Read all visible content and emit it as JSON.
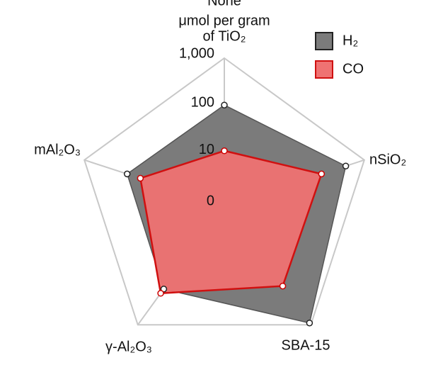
{
  "chart_data": {
    "type": "radar",
    "annotation": [
      "μmol per gram",
      "of TiO₂"
    ],
    "categories": [
      "None",
      "nSiO₂",
      "SBA-15",
      "γ-Al₂O₃",
      "mAl₂O₃"
    ],
    "scale": "log1p",
    "rlim": [
      0,
      1000
    ],
    "rticks": [
      0,
      10,
      100,
      {
        "value": 1000,
        "label": "1,000"
      }
    ],
    "legend": "top-right",
    "series": [
      {
        "name": "H₂",
        "color": "#7b7b7b",
        "values": [
          110,
          400,
          900,
          125,
          120
        ]
      },
      {
        "name": "CO",
        "color": "#ef7272",
        "values": [
          12,
          120,
          105,
          160,
          62
        ]
      }
    ]
  }
}
